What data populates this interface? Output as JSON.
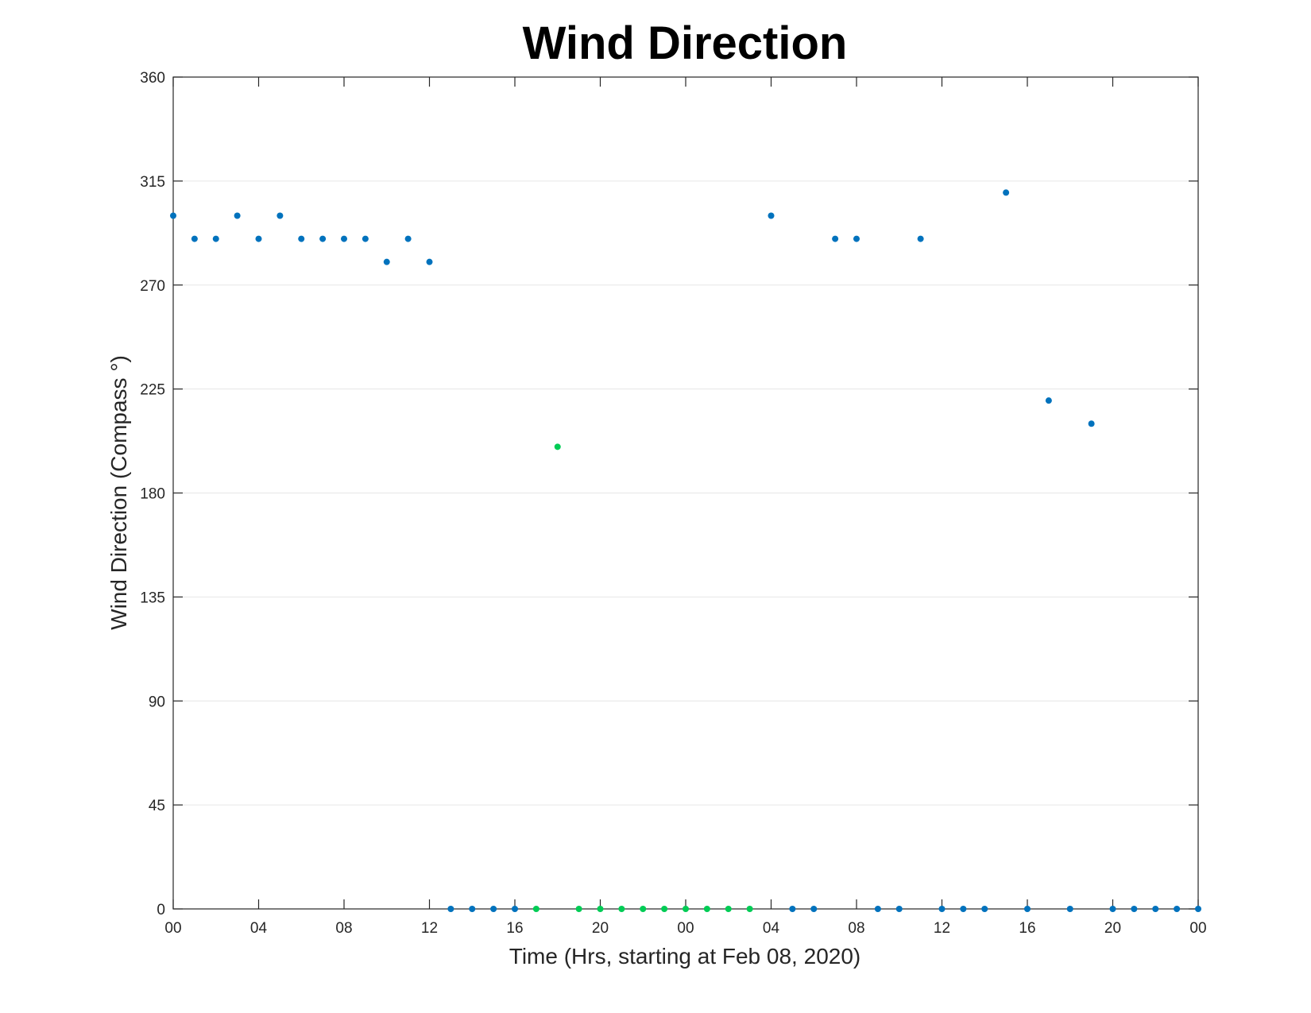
{
  "chart_data": {
    "type": "scatter",
    "title": "Wind Direction",
    "xlabel": "Time (Hrs, starting at Feb 08, 2020)",
    "ylabel": "Wind Direction (Compass °)",
    "ylim": [
      0,
      360
    ],
    "xlim": [
      "Feb 08, 2020 00:00",
      "Feb 10, 2020 00:00"
    ],
    "grid": "y-only",
    "legend": "none",
    "yticks": [
      0,
      45,
      90,
      135,
      180,
      225,
      270,
      315,
      360
    ],
    "xticks": [
      "Feb 08, 2020 00:00",
      "Feb 08, 2020 04:00",
      "Feb 08, 2020 08:00",
      "Feb 08, 2020 12:00",
      "Feb 08, 2020 16:00",
      "Feb 08, 2020 20:00",
      "Feb 09, 2020 00:00",
      "Feb 09, 2020 04:00",
      "Feb 09, 2020 08:00",
      "Feb 09, 2020 12:00",
      "Feb 09, 2020 16:00",
      "Feb 09, 2020 20:00",
      "Feb 10, 2020 00:00"
    ],
    "xtick_labels": [
      "00",
      "04",
      "08",
      "12",
      "16",
      "20",
      "00",
      "04",
      "08",
      "12",
      "16",
      "20",
      "00"
    ],
    "series": [
      {
        "color": "#0072bd",
        "points": [
          {
            "x": "Feb 08, 2020 00:00",
            "y": 300
          },
          {
            "x": "Feb 08, 2020 01:00",
            "y": 290
          },
          {
            "x": "Feb 08, 2020 02:00",
            "y": 290
          },
          {
            "x": "Feb 08, 2020 03:00",
            "y": 300
          },
          {
            "x": "Feb 08, 2020 04:00",
            "y": 290
          },
          {
            "x": "Feb 08, 2020 05:00",
            "y": 300
          },
          {
            "x": "Feb 08, 2020 06:00",
            "y": 290
          },
          {
            "x": "Feb 08, 2020 07:00",
            "y": 290
          },
          {
            "x": "Feb 08, 2020 08:00",
            "y": 290
          },
          {
            "x": "Feb 08, 2020 09:00",
            "y": 290
          },
          {
            "x": "Feb 08, 2020 10:00",
            "y": 280
          },
          {
            "x": "Feb 08, 2020 11:00",
            "y": 290
          },
          {
            "x": "Feb 08, 2020 12:00",
            "y": 280
          },
          {
            "x": "Feb 08, 2020 13:00",
            "y": 0
          },
          {
            "x": "Feb 08, 2020 14:00",
            "y": 0
          },
          {
            "x": "Feb 08, 2020 15:00",
            "y": 0
          },
          {
            "x": "Feb 08, 2020 16:00",
            "y": 0
          },
          {
            "x": "Feb 09, 2020 04:00",
            "y": 300
          },
          {
            "x": "Feb 09, 2020 05:00",
            "y": 0
          },
          {
            "x": "Feb 09, 2020 06:00",
            "y": 0
          },
          {
            "x": "Feb 09, 2020 07:00",
            "y": 290
          },
          {
            "x": "Feb 09, 2020 08:00",
            "y": 290
          },
          {
            "x": "Feb 09, 2020 09:00",
            "y": 0
          },
          {
            "x": "Feb 09, 2020 10:00",
            "y": 0
          },
          {
            "x": "Feb 09, 2020 11:00",
            "y": 290
          },
          {
            "x": "Feb 09, 2020 12:00",
            "y": 0
          },
          {
            "x": "Feb 09, 2020 13:00",
            "y": 0
          },
          {
            "x": "Feb 09, 2020 14:00",
            "y": 0
          },
          {
            "x": "Feb 09, 2020 15:00",
            "y": 310
          },
          {
            "x": "Feb 09, 2020 16:00",
            "y": 0
          },
          {
            "x": "Feb 09, 2020 17:00",
            "y": 220
          },
          {
            "x": "Feb 09, 2020 18:00",
            "y": 0
          },
          {
            "x": "Feb 09, 2020 19:00",
            "y": 210
          },
          {
            "x": "Feb 09, 2020 20:00",
            "y": 0
          },
          {
            "x": "Feb 09, 2020 21:00",
            "y": 0
          },
          {
            "x": "Feb 09, 2020 22:00",
            "y": 0
          },
          {
            "x": "Feb 09, 2020 23:00",
            "y": 0
          },
          {
            "x": "Feb 10, 2020 00:00",
            "y": 0
          }
        ]
      },
      {
        "color": "#00cc55",
        "points": [
          {
            "x": "Feb 08, 2020 17:00",
            "y": 0
          },
          {
            "x": "Feb 08, 2020 18:00",
            "y": 200
          },
          {
            "x": "Feb 08, 2020 19:00",
            "y": 0
          },
          {
            "x": "Feb 08, 2020 20:00",
            "y": 0
          },
          {
            "x": "Feb 08, 2020 21:00",
            "y": 0
          },
          {
            "x": "Feb 08, 2020 22:00",
            "y": 0
          },
          {
            "x": "Feb 08, 2020 23:00",
            "y": 0
          },
          {
            "x": "Feb 09, 2020 00:00",
            "y": 0
          },
          {
            "x": "Feb 09, 2020 01:00",
            "y": 0
          },
          {
            "x": "Feb 09, 2020 02:00",
            "y": 0
          },
          {
            "x": "Feb 09, 2020 03:00",
            "y": 0
          }
        ]
      }
    ]
  }
}
